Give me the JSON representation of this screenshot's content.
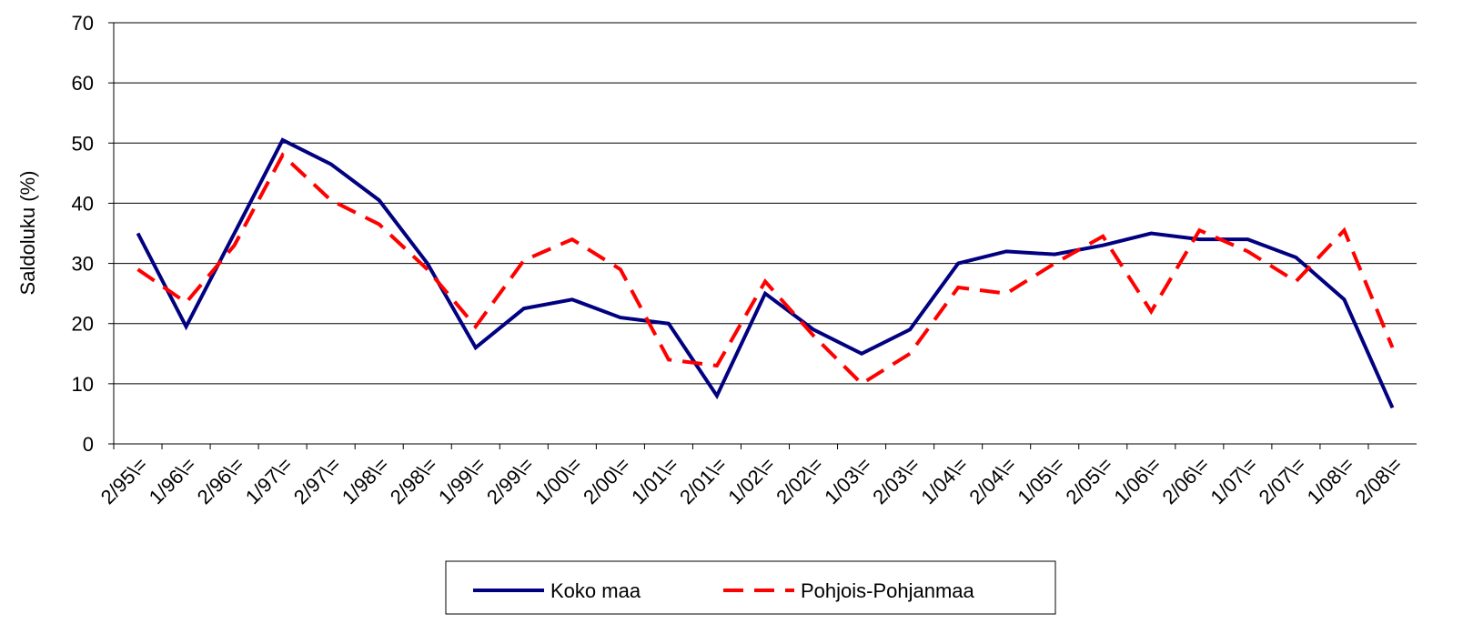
{
  "chart_data": {
    "type": "line",
    "y_label": "Saldoluku (%)",
    "categories": [
      "2/95\\=",
      "1/96\\=",
      "2/96\\=",
      "1/97\\=",
      "2/97\\=",
      "1/98\\=",
      "2/98\\=",
      "1/99\\=",
      "2/99\\=",
      "1/00\\=",
      "2/00\\=",
      "1/01\\=",
      "2/01\\=",
      "1/02\\=",
      "2/02\\=",
      "1/03\\=",
      "2/03\\=",
      "1/04\\=",
      "2/04\\=",
      "1/05\\=",
      "2/05\\=",
      "1/06\\=",
      "2/06\\=",
      "1/07\\=",
      "2/07\\=",
      "1/08\\=",
      "2/08\\="
    ],
    "series": [
      {
        "name": "Koko maa",
        "color": "#000080",
        "dash": false,
        "values": [
          35,
          19.5,
          35,
          50.5,
          46.5,
          40.5,
          30,
          16,
          22.5,
          24,
          21,
          20,
          8,
          25,
          19,
          15,
          19,
          30,
          32,
          31.5,
          33,
          35,
          34,
          34,
          31,
          24,
          6
        ]
      },
      {
        "name": "Pohjois-Pohjanmaa",
        "color": "#ff0000",
        "dash": true,
        "values": [
          29,
          23.5,
          33,
          48,
          40.5,
          36.5,
          29,
          19.5,
          30.5,
          34,
          29,
          14,
          13,
          27,
          18,
          10,
          15,
          26,
          25,
          30,
          34.5,
          22,
          35.5,
          32,
          27,
          35.5,
          16
        ]
      }
    ],
    "ylim": [
      0,
      70
    ],
    "yticks": [
      0,
      10,
      20,
      30,
      40,
      50,
      60,
      70
    ],
    "grid": true
  }
}
